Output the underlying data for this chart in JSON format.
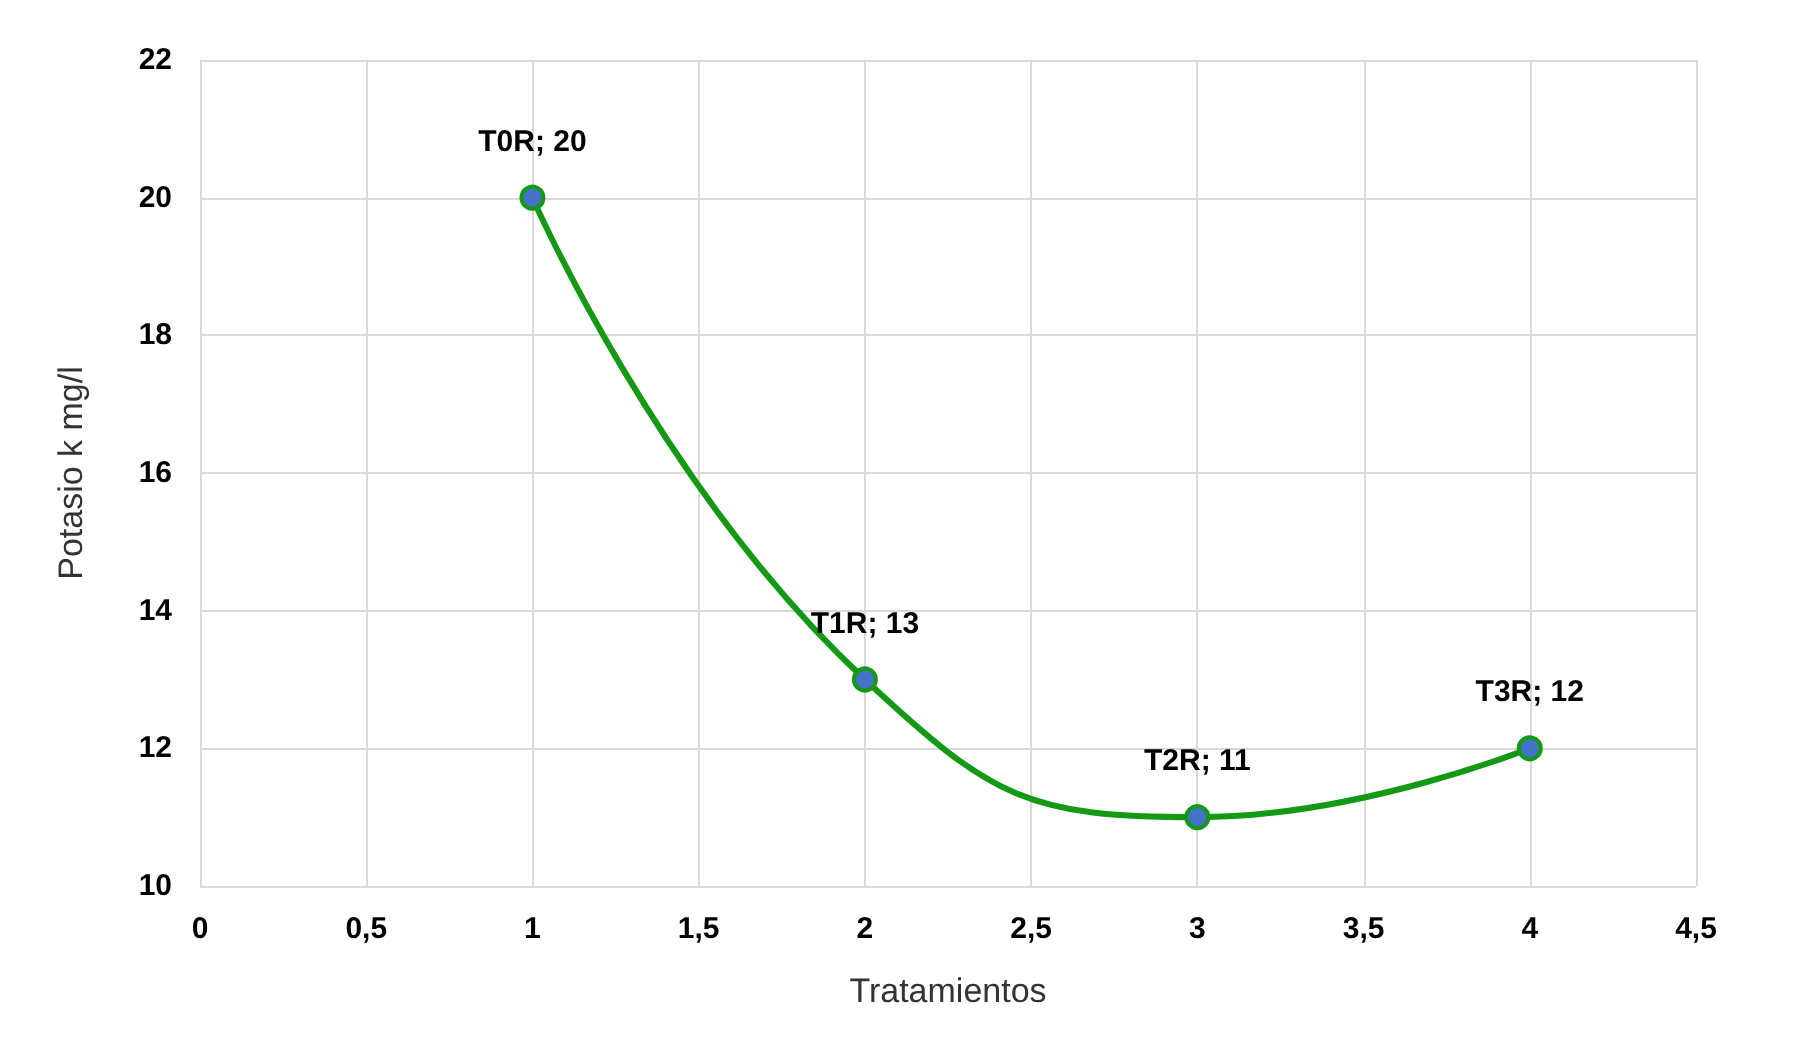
{
  "chart_data": {
    "type": "line",
    "xlabel": "Tratamientos",
    "ylabel": "Potasio k mg/l",
    "x": [
      1,
      2,
      3,
      4
    ],
    "series": [
      {
        "color": "#139913",
        "colors": [
          "#4472c4",
          "#4472c4",
          "#4472c4",
          "#4472c4"
        ],
        "values": [
          20,
          13,
          11,
          12
        ],
        "value_labels": [
          "T0R; 20",
          "T1R; 13",
          "T2R; 11",
          "T3R; 12"
        ]
      }
    ],
    "xlim": [
      0,
      4.5
    ],
    "xticks": [
      0,
      {
        "value": 0.5,
        "label": "0,5"
      },
      1,
      {
        "value": 1.5,
        "label": "1,5"
      },
      2,
      {
        "value": 2.5,
        "label": "2,5"
      },
      3,
      {
        "value": 3.5,
        "label": "3,5"
      },
      4,
      {
        "value": 4.5,
        "label": "4,5"
      }
    ],
    "ylim": [
      10,
      22
    ],
    "yticks": [
      10,
      12,
      14,
      16,
      18,
      20,
      22
    ],
    "grid": true,
    "marker": "circle",
    "line_style": "solid"
  }
}
